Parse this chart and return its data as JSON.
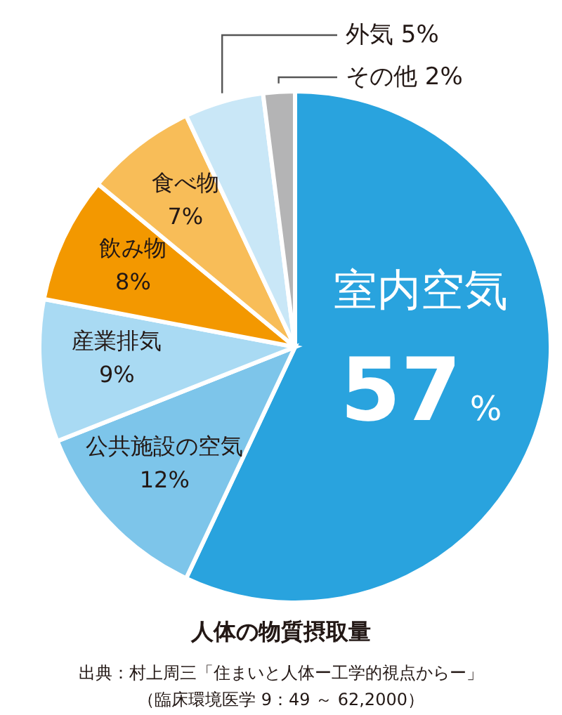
{
  "chart_data": {
    "type": "pie",
    "title": "人体の物質摂取量",
    "categories": [
      "室内空気",
      "公共施設の空気",
      "産業排気",
      "飲み物",
      "食べ物",
      "外気",
      "その他"
    ],
    "values": [
      57,
      12,
      9,
      8,
      7,
      5,
      2
    ],
    "value_labels": [
      "57%",
      "12%",
      "9%",
      "8%",
      "7%",
      "5%",
      "2%"
    ],
    "colors": [
      "#29a3de",
      "#7dc5ea",
      "#a9daf3",
      "#f39800",
      "#f8bd58",
      "#c9e7f7",
      "#b4b4b5"
    ],
    "annotations": [
      "出典：村上周三「住まいと人体ー工学的視点からー」",
      "（臨床環境医学 9：49 ～ 62,2000）"
    ]
  }
}
